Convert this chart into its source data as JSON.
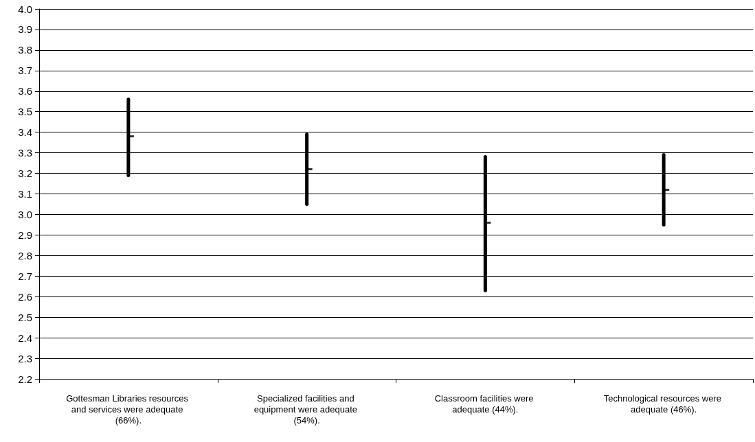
{
  "chart_data": {
    "type": "scatter",
    "categories": [
      "Gottesman Libraries resources and services were adequate (66%).",
      "Specialized facilities and equipment were adequate (54%).",
      "Classroom facilities were adequate (44%).",
      "Technological resources were adequate (46%)."
    ],
    "values": [
      3.38,
      3.22,
      2.96,
      3.12
    ],
    "errors": [
      [
        3.19,
        3.56
      ],
      [
        3.05,
        3.39
      ],
      [
        2.63,
        3.28
      ],
      [
        2.95,
        3.29
      ]
    ],
    "color": "#000000",
    "marker": "square",
    "ylim": [
      2.2,
      4.0
    ],
    "yticks": [
      {
        "value": 2.2,
        "label": "2.2"
      },
      {
        "value": 2.3,
        "label": "2.3"
      },
      {
        "value": 2.4,
        "label": "2.4"
      },
      {
        "value": 2.5,
        "label": "2.5"
      },
      {
        "value": 2.6,
        "label": "2.6"
      },
      {
        "value": 2.7,
        "label": "2.7"
      },
      {
        "value": 2.8,
        "label": "2.8"
      },
      {
        "value": 2.9,
        "label": "2.9"
      },
      {
        "value": 3.0,
        "label": "3.0"
      },
      {
        "value": 3.1,
        "label": "3.1"
      },
      {
        "value": 3.2,
        "label": "3.2"
      },
      {
        "value": 3.3,
        "label": "3.3"
      },
      {
        "value": 3.4,
        "label": "3.4"
      },
      {
        "value": 3.5,
        "label": "3.5"
      },
      {
        "value": 3.6,
        "label": "3.6"
      },
      {
        "value": 3.7,
        "label": "3.7"
      },
      {
        "value": 3.8,
        "label": "3.8"
      },
      {
        "value": 3.9,
        "label": "3.9"
      },
      {
        "value": 4.0,
        "label": "4.0"
      }
    ],
    "grid": "y"
  }
}
